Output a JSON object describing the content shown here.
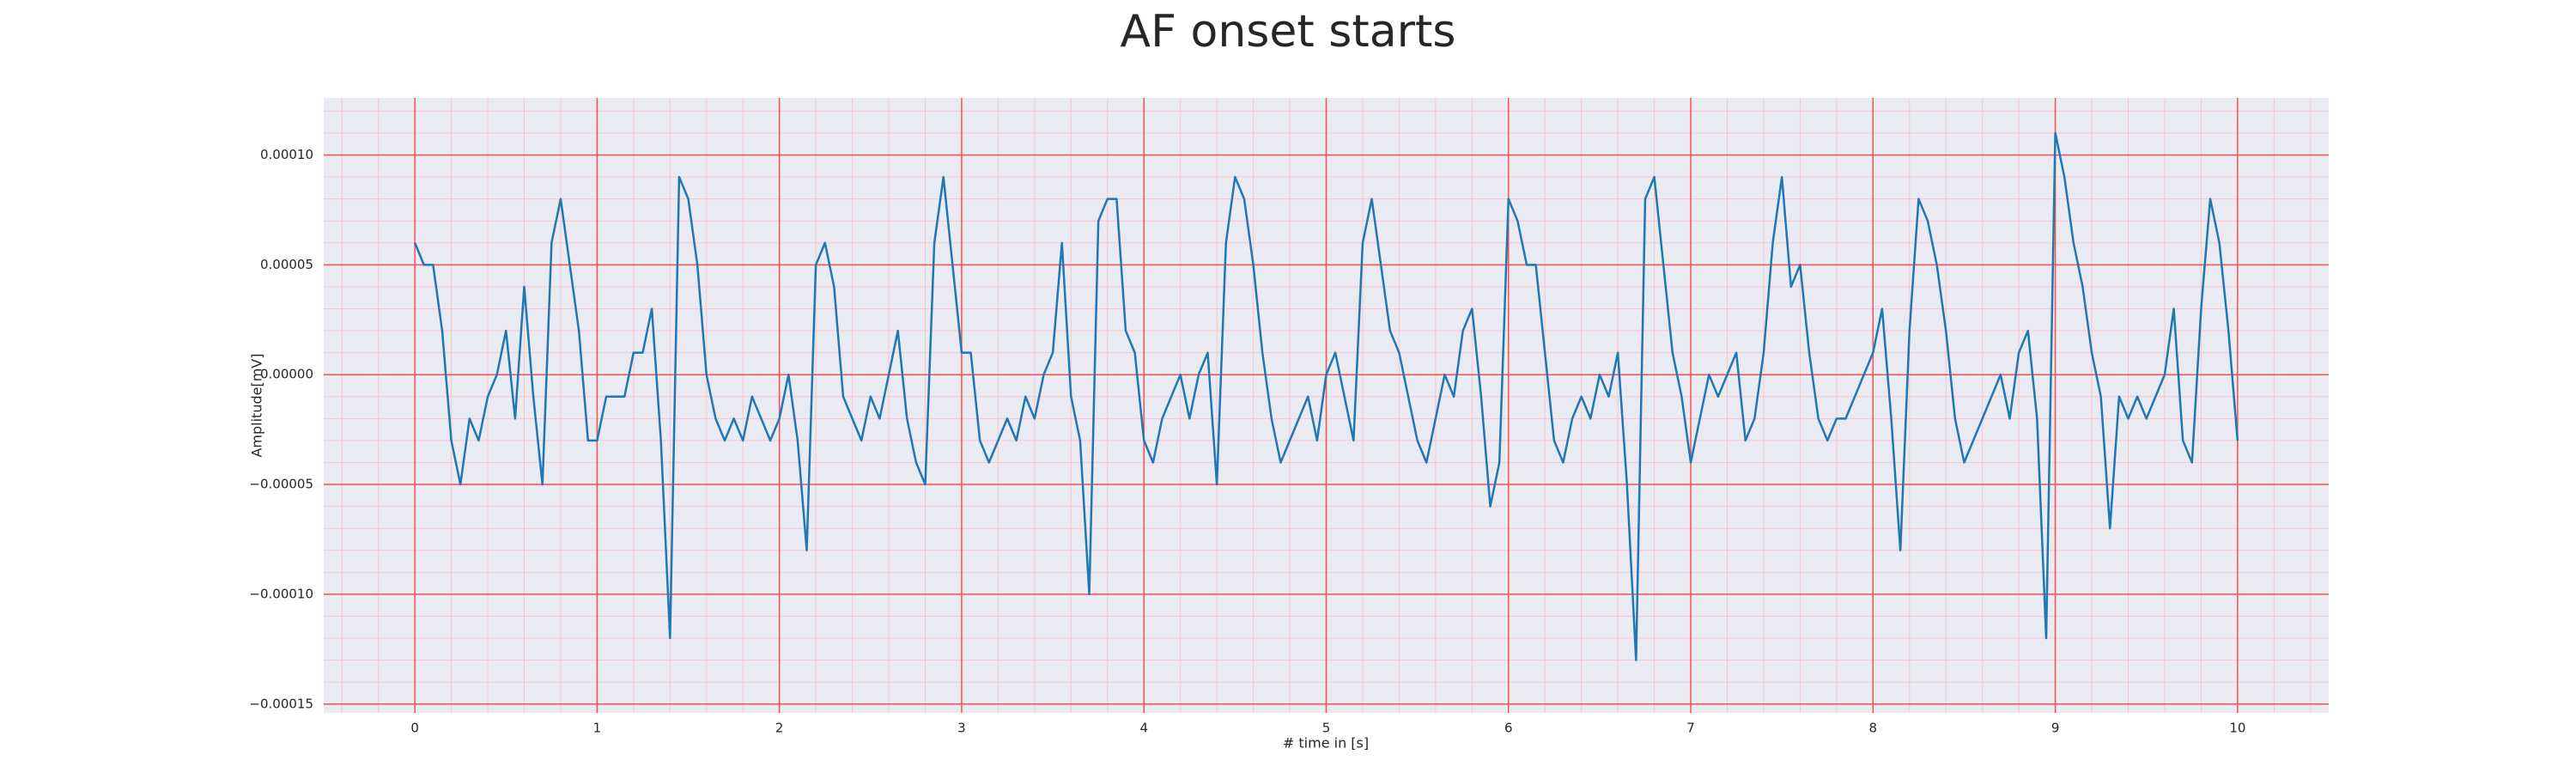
{
  "chart_data": {
    "type": "line",
    "title": "AF onset starts",
    "xlabel": "# time in [s]",
    "ylabel": "Amplitude[mV]",
    "color": "#1f77b4",
    "grid": true,
    "xlim": [
      -0.5,
      10.5
    ],
    "ylim": [
      -0.000154,
      0.000126
    ],
    "xticks": [
      0,
      1,
      2,
      3,
      4,
      5,
      6,
      7,
      8,
      9,
      10
    ],
    "yticks": [
      {
        "value": -0.00015,
        "label": "−0.00015"
      },
      {
        "value": -0.0001,
        "label": "−0.00010"
      },
      {
        "value": -5e-05,
        "label": "−0.00005"
      },
      {
        "value": 0,
        "label": "0.00000"
      },
      {
        "value": 5e-05,
        "label": "0.00005"
      },
      {
        "value": 0.0001,
        "label": "0.00010"
      }
    ],
    "xminorticks": [
      -0.4,
      -0.2,
      0.2,
      0.4,
      0.6,
      0.8,
      1.2,
      1.4,
      1.6,
      1.8,
      2.2,
      2.4,
      2.6,
      2.8,
      3.2,
      3.4,
      3.6,
      3.8,
      4.2,
      4.4,
      4.6,
      4.8,
      5.2,
      5.4,
      5.6,
      5.8,
      6.2,
      6.4,
      6.6,
      6.8,
      7.2,
      7.4,
      7.6,
      7.8,
      8.2,
      8.4,
      8.6,
      8.8,
      9.2,
      9.4,
      9.6,
      9.8,
      10.2,
      10.4
    ],
    "yminorticks": [
      -0.00014,
      -0.00013,
      -0.00012,
      -0.00011,
      -9e-05,
      -8e-05,
      -7e-05,
      -6e-05,
      -4e-05,
      -3e-05,
      -2e-05,
      -1e-05,
      1e-05,
      2e-05,
      3e-05,
      4e-05,
      6e-05,
      7e-05,
      8e-05,
      9e-05,
      0.00011,
      0.00012
    ],
    "x": [
      0,
      0.05,
      0.1,
      0.15,
      0.2,
      0.25,
      0.3,
      0.35,
      0.4,
      0.45,
      0.5,
      0.55,
      0.6,
      0.65,
      0.7,
      0.75,
      0.8,
      0.85,
      0.9,
      0.95,
      1,
      1.05,
      1.1,
      1.15,
      1.2,
      1.25,
      1.3,
      1.35,
      1.4,
      1.45,
      1.5,
      1.55,
      1.6,
      1.65,
      1.7,
      1.75,
      1.8,
      1.85,
      1.9,
      1.95,
      2,
      2.05,
      2.1,
      2.15,
      2.2,
      2.25,
      2.3,
      2.35,
      2.4,
      2.45,
      2.5,
      2.55,
      2.6,
      2.65,
      2.7,
      2.75,
      2.8,
      2.85,
      2.9,
      2.95,
      3,
      3.05,
      3.1,
      3.15,
      3.2,
      3.25,
      3.3,
      3.35,
      3.4,
      3.45,
      3.5,
      3.55,
      3.6,
      3.65,
      3.7,
      3.75,
      3.8,
      3.85,
      3.9,
      3.95,
      4,
      4.05,
      4.1,
      4.15,
      4.2,
      4.25,
      4.3,
      4.35,
      4.4,
      4.45,
      4.5,
      4.55,
      4.6,
      4.65,
      4.7,
      4.75,
      4.8,
      4.85,
      4.9,
      4.95,
      5,
      5.05,
      5.1,
      5.15,
      5.2,
      5.25,
      5.3,
      5.35,
      5.4,
      5.45,
      5.5,
      5.55,
      5.6,
      5.65,
      5.7,
      5.75,
      5.8,
      5.85,
      5.9,
      5.95,
      6,
      6.05,
      6.1,
      6.15,
      6.2,
      6.25,
      6.3,
      6.35,
      6.4,
      6.45,
      6.5,
      6.55,
      6.6,
      6.65,
      6.7,
      6.75,
      6.8,
      6.85,
      6.9,
      6.95,
      7,
      7.05,
      7.1,
      7.15,
      7.2,
      7.25,
      7.3,
      7.35,
      7.4,
      7.45,
      7.5,
      7.55,
      7.6,
      7.65,
      7.7,
      7.75,
      7.8,
      7.85,
      7.9,
      7.95,
      8,
      8.05,
      8.1,
      8.15,
      8.2,
      8.25,
      8.3,
      8.35,
      8.4,
      8.45,
      8.5,
      8.55,
      8.6,
      8.65,
      8.7,
      8.75,
      8.8,
      8.85,
      8.9,
      8.95,
      9,
      9.05,
      9.1,
      9.15,
      9.2,
      9.25,
      9.3,
      9.35,
      9.4,
      9.45,
      9.5,
      9.55,
      9.6,
      9.65,
      9.7,
      9.75,
      9.8,
      9.85,
      9.9,
      9.95,
      10
    ],
    "values": [
      6e-05,
      5e-05,
      5e-05,
      2e-05,
      -3e-05,
      -5e-05,
      -2e-05,
      -3e-05,
      -1e-05,
      0,
      2e-05,
      -2e-05,
      4e-05,
      -1e-05,
      -5e-05,
      6e-05,
      8e-05,
      5e-05,
      2e-05,
      -3e-05,
      -3e-05,
      -1e-05,
      -1e-05,
      -1e-05,
      1e-05,
      1e-05,
      3e-05,
      -3e-05,
      -0.00012,
      9e-05,
      8e-05,
      5e-05,
      0,
      -2e-05,
      -3e-05,
      -2e-05,
      -3e-05,
      -1e-05,
      -2e-05,
      -3e-05,
      -2e-05,
      0,
      -3e-05,
      -8e-05,
      5e-05,
      6e-05,
      4e-05,
      -1e-05,
      -2e-05,
      -3e-05,
      -1e-05,
      -2e-05,
      0,
      2e-05,
      -2e-05,
      -4e-05,
      -5e-05,
      6e-05,
      9e-05,
      5e-05,
      1e-05,
      1e-05,
      -3e-05,
      -4e-05,
      -3e-05,
      -2e-05,
      -3e-05,
      -1e-05,
      -2e-05,
      0,
      1e-05,
      6e-05,
      -1e-05,
      -3e-05,
      -0.0001,
      7e-05,
      8e-05,
      8e-05,
      2e-05,
      1e-05,
      -3e-05,
      -4e-05,
      -2e-05,
      -1e-05,
      0,
      -2e-05,
      0,
      1e-05,
      -5e-05,
      6e-05,
      9e-05,
      8e-05,
      5e-05,
      1e-05,
      -2e-05,
      -4e-05,
      -3e-05,
      -2e-05,
      -1e-05,
      -3e-05,
      0,
      1e-05,
      -1e-05,
      -3e-05,
      6e-05,
      8e-05,
      5e-05,
      2e-05,
      1e-05,
      -1e-05,
      -3e-05,
      -4e-05,
      -2e-05,
      0,
      -1e-05,
      2e-05,
      3e-05,
      -1e-05,
      -6e-05,
      -4e-05,
      8e-05,
      7e-05,
      5e-05,
      5e-05,
      1e-05,
      -3e-05,
      -4e-05,
      -2e-05,
      -1e-05,
      -2e-05,
      0,
      -1e-05,
      1e-05,
      -5e-05,
      -0.00013,
      8e-05,
      9e-05,
      5e-05,
      1e-05,
      -1e-05,
      -4e-05,
      -2e-05,
      0,
      -1e-05,
      0,
      1e-05,
      -3e-05,
      -2e-05,
      1e-05,
      6e-05,
      9e-05,
      4e-05,
      5e-05,
      1e-05,
      -2e-05,
      -3e-05,
      -2e-05,
      -2e-05,
      -1e-05,
      0,
      1e-05,
      3e-05,
      -2e-05,
      -8e-05,
      2e-05,
      8e-05,
      7e-05,
      5e-05,
      2e-05,
      -2e-05,
      -4e-05,
      -3e-05,
      -2e-05,
      -1e-05,
      0,
      -2e-05,
      1e-05,
      2e-05,
      -2e-05,
      -0.00012,
      0.00011,
      9e-05,
      6e-05,
      4e-05,
      1e-05,
      -1e-05,
      -7e-05,
      -1e-05,
      -2e-05,
      -1e-05,
      -2e-05,
      -1e-05,
      0,
      3e-05,
      -3e-05,
      -4e-05,
      3e-05,
      8e-05,
      6e-05,
      2e-05,
      -3e-05
    ]
  }
}
